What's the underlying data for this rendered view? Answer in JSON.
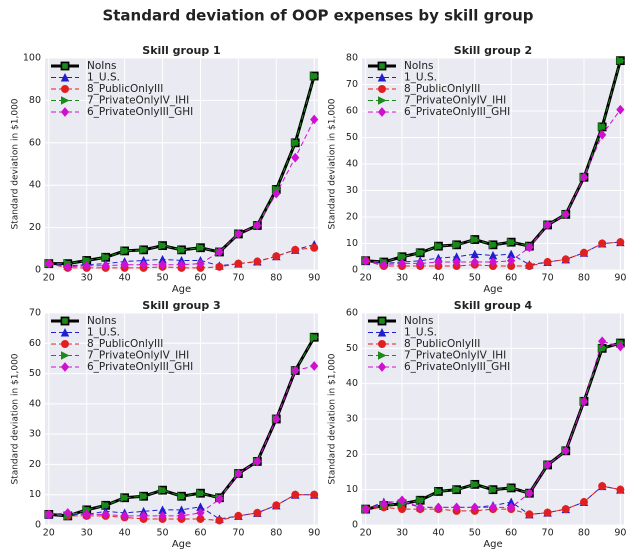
{
  "title": "Standard deviation of OOP expenses by skill group",
  "chart_data": [
    {
      "type": "line",
      "title": "Skill group 1",
      "xlabel": "Age",
      "ylabel": "Standard deviation in $1,000",
      "x": [
        20,
        25,
        30,
        35,
        40,
        45,
        50,
        55,
        60,
        65,
        70,
        75,
        80,
        85,
        90
      ],
      "xlim": [
        19,
        91
      ],
      "xticks": [
        20,
        30,
        40,
        50,
        60,
        70,
        80,
        90
      ],
      "ylim": [
        0,
        100
      ],
      "yticks": [
        0,
        20,
        40,
        60,
        80,
        100
      ],
      "grid": true,
      "legend": "upper left",
      "series": [
        {
          "name": "NoIns",
          "color": "#000000",
          "marker": "square",
          "linestyle": "solid",
          "values": [
            3,
            3,
            4.5,
            6,
            9,
            9.5,
            11.5,
            9.5,
            10.5,
            8.5,
            17,
            21,
            38,
            60,
            91.5
          ]
        },
        {
          "name": "1_U.S.",
          "color": "#1f1fd0",
          "marker": "triangle-up",
          "linestyle": "dashed",
          "values": [
            3,
            2,
            2.5,
            3,
            4,
            4.5,
            5,
            4.5,
            4.5,
            2,
            3,
            4,
            6.5,
            9.5,
            12
          ]
        },
        {
          "name": "8_PublicOnlyIII",
          "color": "#e02020",
          "marker": "circle",
          "linestyle": "dashed",
          "values": [
            3,
            1,
            1,
            1,
            1,
            1,
            1.5,
            1,
            1,
            1.5,
            3,
            4,
            6.5,
            9.5,
            10.5
          ]
        },
        {
          "name": "7_PrivateOnlyIV_IHI",
          "color": "#1a8a1a",
          "marker": "triangle-right",
          "linestyle": "dashed",
          "values": [
            3,
            3,
            4.5,
            6,
            9,
            9.5,
            11.5,
            9.5,
            10.5,
            8.5,
            17,
            21,
            38,
            60,
            91.5
          ]
        },
        {
          "name": "6_PrivateOnlyIII_GHI",
          "color": "#d010d0",
          "marker": "diamond",
          "linestyle": "dashed",
          "values": [
            3,
            1.5,
            2,
            2,
            2.5,
            2.5,
            2.5,
            2.5,
            3,
            8.5,
            17,
            21,
            36,
            53,
            71
          ]
        }
      ]
    },
    {
      "type": "line",
      "title": "Skill group 2",
      "xlabel": "Age",
      "ylabel": "Standard deviation in $1,000",
      "x": [
        20,
        25,
        30,
        35,
        40,
        45,
        50,
        55,
        60,
        65,
        70,
        75,
        80,
        85,
        90
      ],
      "xlim": [
        19,
        91
      ],
      "xticks": [
        20,
        30,
        40,
        50,
        60,
        70,
        80,
        90
      ],
      "ylim": [
        0,
        80
      ],
      "yticks": [
        0,
        10,
        20,
        30,
        40,
        50,
        60,
        70,
        80
      ],
      "grid": true,
      "legend": "upper left",
      "series": [
        {
          "name": "NoIns",
          "color": "#000000",
          "marker": "square",
          "linestyle": "solid",
          "values": [
            3.5,
            3,
            5,
            6.5,
            9,
            9.5,
            11.5,
            9.5,
            10.5,
            9,
            17,
            21,
            35,
            54,
            79
          ]
        },
        {
          "name": "1_U.S.",
          "color": "#1f1fd0",
          "marker": "triangle-up",
          "linestyle": "dashed",
          "values": [
            3.5,
            2.5,
            3,
            3.5,
            4.5,
            5,
            6,
            5.5,
            6,
            2,
            3,
            4,
            6.5,
            10,
            10.5
          ]
        },
        {
          "name": "8_PublicOnlyIII",
          "color": "#e02020",
          "marker": "circle",
          "linestyle": "dashed",
          "values": [
            3.5,
            1.5,
            1.5,
            1.5,
            1.5,
            1.5,
            2,
            1.5,
            1.5,
            1.5,
            3,
            4,
            6.5,
            10,
            10.5
          ]
        },
        {
          "name": "7_PrivateOnlyIV_IHI",
          "color": "#1a8a1a",
          "marker": "triangle-right",
          "linestyle": "dashed",
          "values": [
            3.5,
            3,
            5,
            6.5,
            9,
            9.5,
            11.5,
            9.5,
            10.5,
            9,
            17,
            21,
            35,
            54,
            79
          ]
        },
        {
          "name": "6_PrivateOnlyIII_GHI",
          "color": "#d010d0",
          "marker": "diamond",
          "linestyle": "dashed",
          "values": [
            3.5,
            2,
            2.5,
            2.5,
            3,
            3,
            3,
            3,
            3.5,
            8.5,
            17,
            21,
            35,
            51,
            60.5
          ]
        }
      ]
    },
    {
      "type": "line",
      "title": "Skill group 3",
      "xlabel": "Age",
      "ylabel": "Standard deviation in $1,000",
      "x": [
        20,
        25,
        30,
        35,
        40,
        45,
        50,
        55,
        60,
        65,
        70,
        75,
        80,
        85,
        90
      ],
      "xlim": [
        19,
        91
      ],
      "xticks": [
        20,
        30,
        40,
        50,
        60,
        70,
        80,
        90
      ],
      "ylim": [
        0,
        70
      ],
      "yticks": [
        0,
        10,
        20,
        30,
        40,
        50,
        60,
        70
      ],
      "grid": true,
      "legend": "upper left",
      "series": [
        {
          "name": "NoIns",
          "color": "#000000",
          "marker": "square",
          "linestyle": "solid",
          "values": [
            3.5,
            3,
            5,
            6.5,
            9,
            9.5,
            11.5,
            9.5,
            10.5,
            9,
            17,
            21,
            35,
            51,
            62
          ]
        },
        {
          "name": "1_U.S.",
          "color": "#1f1fd0",
          "marker": "triangle-up",
          "linestyle": "dashed",
          "values": [
            3.5,
            3.5,
            3.5,
            4.5,
            4,
            4.5,
            5,
            5,
            6,
            2,
            3,
            4,
            6.5,
            10,
            10
          ]
        },
        {
          "name": "8_PublicOnlyIII",
          "color": "#e02020",
          "marker": "circle",
          "linestyle": "dashed",
          "values": [
            3.5,
            3,
            3,
            3,
            2.5,
            2,
            2,
            2,
            2,
            1.5,
            3,
            4,
            6.5,
            10,
            10
          ]
        },
        {
          "name": "7_PrivateOnlyIV_IHI",
          "color": "#1a8a1a",
          "marker": "triangle-right",
          "linestyle": "dashed",
          "values": [
            3.5,
            3,
            5,
            6.5,
            9,
            9.5,
            11.5,
            9.5,
            10.5,
            9,
            17,
            21,
            35,
            51,
            62
          ]
        },
        {
          "name": "6_PrivateOnlyIII_GHI",
          "color": "#d010d0",
          "marker": "diamond",
          "linestyle": "dashed",
          "values": [
            3.5,
            4,
            3.5,
            3.5,
            3,
            3,
            3,
            3,
            4,
            8.5,
            17,
            21,
            35,
            51,
            52.5
          ]
        }
      ]
    },
    {
      "type": "line",
      "title": "Skill group 4",
      "xlabel": "Age",
      "ylabel": "Standard deviation in $1,000",
      "x": [
        20,
        25,
        30,
        35,
        40,
        45,
        50,
        55,
        60,
        65,
        70,
        75,
        80,
        85,
        90
      ],
      "xlim": [
        19,
        91
      ],
      "xticks": [
        20,
        30,
        40,
        50,
        60,
        70,
        80,
        90
      ],
      "ylim": [
        0,
        60
      ],
      "yticks": [
        0,
        10,
        20,
        30,
        40,
        50,
        60
      ],
      "grid": true,
      "legend": "upper left",
      "series": [
        {
          "name": "NoIns",
          "color": "#000000",
          "marker": "square",
          "linestyle": "solid",
          "values": [
            4.5,
            5.5,
            6,
            7,
            9.5,
            10,
            11.5,
            10,
            10.5,
            9,
            17,
            21,
            35,
            50,
            51.5
          ]
        },
        {
          "name": "1_U.S.",
          "color": "#1f1fd0",
          "marker": "triangle-up",
          "linestyle": "dashed",
          "values": [
            4.5,
            6.5,
            6.5,
            5,
            5,
            5,
            5,
            5.5,
            6.5,
            3,
            3.5,
            4.5,
            6.5,
            11,
            10
          ]
        },
        {
          "name": "8_PublicOnlyIII",
          "color": "#e02020",
          "marker": "circle",
          "linestyle": "dashed",
          "values": [
            4.5,
            5,
            4.5,
            4.5,
            4.5,
            4,
            4,
            4.5,
            4.5,
            3,
            3.5,
            4.5,
            6.5,
            11,
            10
          ]
        },
        {
          "name": "7_PrivateOnlyIV_IHI",
          "color": "#1a8a1a",
          "marker": "triangle-right",
          "linestyle": "dashed",
          "values": [
            4.5,
            5.5,
            6,
            7,
            9.5,
            10,
            11.5,
            10,
            10.5,
            9,
            17,
            21,
            35,
            50,
            51.5
          ]
        },
        {
          "name": "6_PrivateOnlyIII_GHI",
          "color": "#d010d0",
          "marker": "diamond",
          "linestyle": "dashed",
          "values": [
            4.5,
            6,
            7,
            5,
            5,
            5,
            5,
            5,
            5,
            9,
            17,
            21,
            35,
            52,
            50.5
          ]
        }
      ]
    }
  ]
}
